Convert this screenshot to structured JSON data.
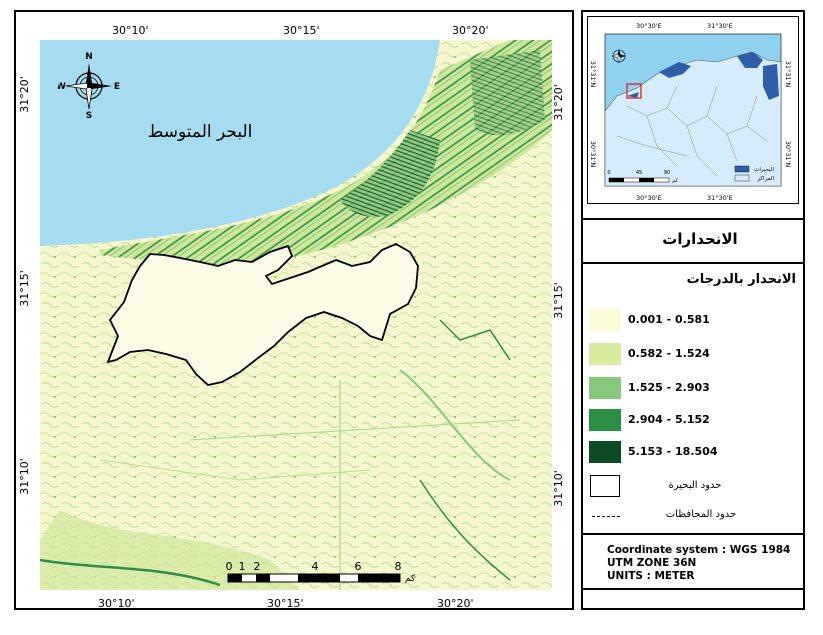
{
  "map": {
    "top_coords": [
      "30°10'",
      "30°15'",
      "30°20'"
    ],
    "bottom_coords": [
      "30°10'",
      "30°15'",
      "30°20'"
    ],
    "left_coords": [
      "31°20'",
      "31°15'",
      "31°10'"
    ],
    "right_coords": [
      "31°20'",
      "31°15'",
      "31°10'"
    ],
    "sea_label": "البحر المتوسط",
    "compass": {
      "n": "N",
      "s": "S",
      "e": "E",
      "w": "W"
    },
    "scale_labels": [
      "0",
      "1",
      "2",
      "4",
      "6",
      "8"
    ],
    "scale_unit": "كم",
    "colors": {
      "sea": "#a6dcef",
      "outline": "#000000"
    }
  },
  "inset": {
    "top_coords": [
      "30°30'E",
      "31°30'E"
    ],
    "bottom_coords": [
      "30°30'E",
      "31°30'E"
    ],
    "left_coords": [
      "31°31'N",
      "30°31'N"
    ],
    "right_coords": [
      "31°31'N",
      "30°31'N"
    ],
    "scale_labels": [
      "0",
      "45",
      "90"
    ],
    "scale_unit": "كم",
    "legend": [
      "البحيرات",
      "المراكز"
    ]
  },
  "title": "الانحدارات",
  "legend": {
    "heading": "الانحدار بالدرجات",
    "classes": [
      {
        "label": "0.001 - 0.581",
        "color": "#fbfbd9"
      },
      {
        "label": "0.582 - 1.524",
        "color": "#d7ec9e"
      },
      {
        "label": "1.525 - 2.903",
        "color": "#86c97b"
      },
      {
        "label": "2.904 - 5.152",
        "color": "#2f8e45"
      },
      {
        "label": "5.153 - 18.504",
        "color": "#0c4a22"
      }
    ],
    "lake_boundary": "حدود البحيرة",
    "governorate_boundary": "حدود المحافظات"
  },
  "info": {
    "line1": "Coordinate system : WGS 1984",
    "line2": "UTM ZONE 36N",
    "line3": "UNITS : METER"
  }
}
